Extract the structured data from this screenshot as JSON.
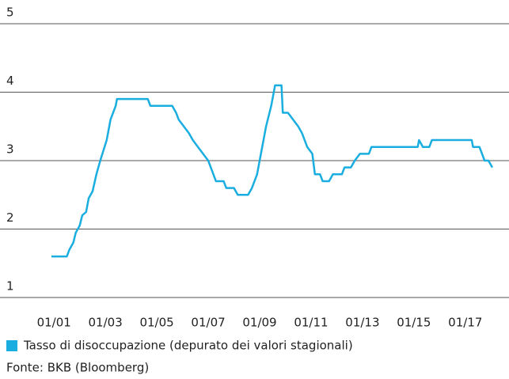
{
  "chart_data": {
    "type": "line",
    "x": [
      2000.9,
      2001.5,
      2001.6,
      2001.75,
      2001.85,
      2002.0,
      2002.1,
      2002.25,
      2002.35,
      2002.5,
      2002.65,
      2002.8,
      2003.05,
      2003.2,
      2003.4,
      2003.45,
      2004.65,
      2004.75,
      2005.6,
      2005.75,
      2005.85,
      2006.05,
      2006.25,
      2006.4,
      2006.6,
      2006.8,
      2007.0,
      2007.15,
      2007.3,
      2007.6,
      2007.7,
      2008.0,
      2008.15,
      2008.55,
      2008.7,
      2008.9,
      2009.05,
      2009.25,
      2009.45,
      2009.55,
      2009.6,
      2009.85,
      2009.9,
      2010.1,
      2010.3,
      2010.5,
      2010.65,
      2010.85,
      2011.05,
      2011.15,
      2011.35,
      2011.45,
      2011.7,
      2011.85,
      2012.2,
      2012.3,
      2012.55,
      2012.7,
      2012.9,
      2013.25,
      2013.35,
      2015.15,
      2015.2,
      2015.35,
      2015.6,
      2015.7,
      2017.25,
      2017.3,
      2017.55,
      2017.75,
      2017.9,
      2018.05
    ],
    "series": [
      {
        "name": "Tasso di disoccupazione (depurato dei valori stagionali)",
        "color": "#1aaee0",
        "values": [
          1.6,
          1.6,
          1.7,
          1.8,
          1.95,
          2.05,
          2.2,
          2.25,
          2.45,
          2.55,
          2.8,
          3.0,
          3.3,
          3.6,
          3.8,
          3.9,
          3.9,
          3.8,
          3.8,
          3.7,
          3.6,
          3.5,
          3.4,
          3.3,
          3.2,
          3.1,
          3.0,
          2.85,
          2.7,
          2.7,
          2.6,
          2.6,
          2.5,
          2.5,
          2.6,
          2.8,
          3.1,
          3.5,
          3.8,
          4.0,
          4.1,
          4.1,
          3.7,
          3.7,
          3.6,
          3.5,
          3.4,
          3.2,
          3.1,
          2.8,
          2.8,
          2.7,
          2.7,
          2.8,
          2.8,
          2.9,
          2.9,
          3.0,
          3.1,
          3.1,
          3.2,
          3.2,
          3.3,
          3.2,
          3.2,
          3.3,
          3.3,
          3.2,
          3.2,
          3.0,
          3.0,
          2.9
        ]
      }
    ],
    "xlim": [
      1998.9,
      2018.7
    ],
    "xticks": [
      {
        "value": 2001,
        "label": "01/01"
      },
      {
        "value": 2003,
        "label": "01/03"
      },
      {
        "value": 2005,
        "label": "01/05"
      },
      {
        "value": 2007,
        "label": "01/07"
      },
      {
        "value": 2009,
        "label": "01/09"
      },
      {
        "value": 2011,
        "label": "01/11"
      },
      {
        "value": 2013,
        "label": "01/13"
      },
      {
        "value": 2015,
        "label": "01/15"
      },
      {
        "value": 2017,
        "label": "01/17"
      }
    ],
    "ylim": [
      1,
      5
    ],
    "yticks": [
      1,
      2,
      3,
      4,
      5
    ],
    "grid": true,
    "source": "Fonte: BKB (Bloomberg)"
  }
}
